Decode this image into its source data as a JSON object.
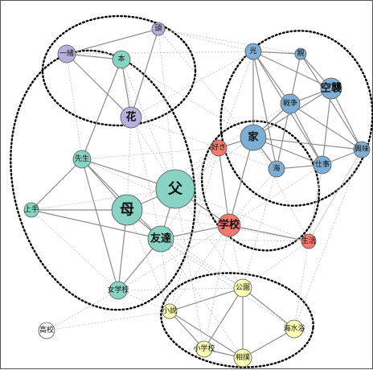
{
  "colors": {
    "teal": "#88d3c3",
    "blue": "#7eaed4",
    "purple": "#b6b0dd",
    "red": "#f2796b",
    "yellow": "#ffffb3",
    "white": "#ffffff",
    "strong_edge": "#8c8c8c",
    "weak_edge": "#c4c4c4"
  },
  "nodes": [
    {
      "id": "mother",
      "label": "母",
      "group": "teal"
    },
    {
      "id": "father",
      "label": "父",
      "group": "teal"
    },
    {
      "id": "friend",
      "label": "友達",
      "group": "teal"
    },
    {
      "id": "teacher",
      "label": "先生",
      "group": "teal"
    },
    {
      "id": "skilled",
      "label": "上手",
      "group": "teal"
    },
    {
      "id": "girls-school",
      "label": "女学校",
      "group": "teal"
    },
    {
      "id": "book",
      "label": "本",
      "group": "teal"
    },
    {
      "id": "flower",
      "label": "花",
      "group": "purple"
    },
    {
      "id": "together",
      "label": "一緒",
      "group": "purple"
    },
    {
      "id": "head",
      "label": "頭",
      "group": "purple"
    },
    {
      "id": "light",
      "label": "光",
      "group": "blue"
    },
    {
      "id": "relative",
      "label": "親",
      "group": "blue"
    },
    {
      "id": "air-raid",
      "label": "空襲",
      "group": "blue"
    },
    {
      "id": "war",
      "label": "戦争",
      "group": "blue"
    },
    {
      "id": "home",
      "label": "家",
      "group": "blue"
    },
    {
      "id": "sea",
      "label": "海",
      "group": "blue"
    },
    {
      "id": "work",
      "label": "仕事",
      "group": "blue"
    },
    {
      "id": "interest",
      "label": "興味",
      "group": "blue"
    },
    {
      "id": "like",
      "label": "好き",
      "group": "red"
    },
    {
      "id": "school",
      "label": "学校",
      "group": "red"
    },
    {
      "id": "life",
      "label": "生活",
      "group": "red"
    },
    {
      "id": "park",
      "label": "公園",
      "group": "yellow"
    },
    {
      "id": "novel",
      "label": "小説",
      "group": "yellow"
    },
    {
      "id": "sea-bathing",
      "label": "海水浴",
      "group": "yellow"
    },
    {
      "id": "elementary-school",
      "label": "小学校",
      "group": "yellow"
    },
    {
      "id": "sumo",
      "label": "相撲",
      "group": "yellow"
    },
    {
      "id": "high-school",
      "label": "高校",
      "group": "white"
    }
  ],
  "edges": [
    {
      "from": "mother",
      "to": "father",
      "type": "strong"
    },
    {
      "from": "mother",
      "to": "friend",
      "type": "strong"
    },
    {
      "from": "father",
      "to": "friend",
      "type": "strong"
    },
    {
      "from": "teacher",
      "to": "mother",
      "type": "strong"
    },
    {
      "from": "teacher",
      "to": "father",
      "type": "strong"
    },
    {
      "from": "teacher",
      "to": "friend",
      "type": "strong"
    },
    {
      "from": "skilled",
      "to": "mother",
      "type": "strong"
    },
    {
      "from": "skilled",
      "to": "teacher",
      "type": "strong"
    },
    {
      "from": "girls-school",
      "to": "mother",
      "type": "strong"
    },
    {
      "from": "girls-school",
      "to": "friend",
      "type": "strong"
    },
    {
      "from": "girls-school",
      "to": "teacher",
      "type": "strong"
    },
    {
      "from": "friend",
      "to": "skilled",
      "type": "strong"
    },
    {
      "from": "book",
      "to": "flower",
      "type": "strong"
    },
    {
      "from": "book",
      "to": "together",
      "type": "strong"
    },
    {
      "from": "together",
      "to": "flower",
      "type": "strong"
    },
    {
      "from": "together",
      "to": "head",
      "type": "strong"
    },
    {
      "from": "flower",
      "to": "head",
      "type": "strong"
    },
    {
      "from": "teacher",
      "to": "book",
      "type": "strong"
    },
    {
      "from": "light",
      "to": "relative",
      "type": "strong"
    },
    {
      "from": "light",
      "to": "war",
      "type": "strong"
    },
    {
      "from": "light",
      "to": "air-raid",
      "type": "strong"
    },
    {
      "from": "light",
      "to": "home",
      "type": "strong"
    },
    {
      "from": "light",
      "to": "sea",
      "type": "strong"
    },
    {
      "from": "light",
      "to": "work",
      "type": "strong"
    },
    {
      "from": "relative",
      "to": "air-raid",
      "type": "strong"
    },
    {
      "from": "relative",
      "to": "war",
      "type": "strong"
    },
    {
      "from": "relative",
      "to": "interest",
      "type": "strong"
    },
    {
      "from": "air-raid",
      "to": "war",
      "type": "strong"
    },
    {
      "from": "air-raid",
      "to": "home",
      "type": "strong"
    },
    {
      "from": "air-raid",
      "to": "interest",
      "type": "strong"
    },
    {
      "from": "air-raid",
      "to": "work",
      "type": "strong"
    },
    {
      "from": "war",
      "to": "home",
      "type": "strong"
    },
    {
      "from": "war",
      "to": "sea",
      "type": "strong"
    },
    {
      "from": "war",
      "to": "work",
      "type": "strong"
    },
    {
      "from": "war",
      "to": "interest",
      "type": "strong"
    },
    {
      "from": "home",
      "to": "sea",
      "type": "strong"
    },
    {
      "from": "home",
      "to": "work",
      "type": "strong"
    },
    {
      "from": "home",
      "to": "interest",
      "type": "strong"
    },
    {
      "from": "sea",
      "to": "work",
      "type": "strong"
    },
    {
      "from": "work",
      "to": "interest",
      "type": "strong"
    },
    {
      "from": "home",
      "to": "like",
      "type": "strong"
    },
    {
      "from": "like",
      "to": "school",
      "type": "strong"
    },
    {
      "from": "school",
      "to": "life",
      "type": "strong"
    },
    {
      "from": "home",
      "to": "school",
      "type": "strong"
    },
    {
      "from": "father",
      "to": "school",
      "type": "strong"
    },
    {
      "from": "friend",
      "to": "school",
      "type": "strong"
    },
    {
      "from": "park",
      "to": "novel",
      "type": "strong"
    },
    {
      "from": "park",
      "to": "sumo",
      "type": "strong"
    },
    {
      "from": "park",
      "to": "sea-bathing",
      "type": "strong"
    },
    {
      "from": "park",
      "to": "elementary-school",
      "type": "strong"
    },
    {
      "from": "novel",
      "to": "elementary-school",
      "type": "strong"
    },
    {
      "from": "novel",
      "to": "sumo",
      "type": "strong"
    },
    {
      "from": "elementary-school",
      "to": "sumo",
      "type": "strong"
    },
    {
      "from": "sumo",
      "to": "sea-bathing",
      "type": "strong"
    },
    {
      "from": "head",
      "to": "light",
      "type": "weak"
    },
    {
      "from": "head",
      "to": "sea",
      "type": "weak"
    },
    {
      "from": "head",
      "to": "father",
      "type": "weak"
    },
    {
      "from": "head",
      "to": "relative",
      "type": "weak"
    },
    {
      "from": "together",
      "to": "teacher",
      "type": "weak"
    },
    {
      "from": "together",
      "to": "light",
      "type": "weak"
    },
    {
      "from": "book",
      "to": "home",
      "type": "weak"
    },
    {
      "from": "book",
      "to": "father",
      "type": "weak"
    },
    {
      "from": "book",
      "to": "friend",
      "type": "weak"
    },
    {
      "from": "flower",
      "to": "like",
      "type": "weak"
    },
    {
      "from": "flower",
      "to": "father",
      "type": "weak"
    },
    {
      "from": "flower",
      "to": "mother",
      "type": "weak"
    },
    {
      "from": "flower",
      "to": "light",
      "type": "weak"
    },
    {
      "from": "teacher",
      "to": "like",
      "type": "weak"
    },
    {
      "from": "teacher",
      "to": "school",
      "type": "weak"
    },
    {
      "from": "skilled",
      "to": "father",
      "type": "weak"
    },
    {
      "from": "skilled",
      "to": "girls-school",
      "type": "weak"
    },
    {
      "from": "mother",
      "to": "life",
      "type": "weak"
    },
    {
      "from": "mother",
      "to": "novel",
      "type": "weak"
    },
    {
      "from": "mother",
      "to": "park",
      "type": "weak"
    },
    {
      "from": "mother",
      "to": "like",
      "type": "weak"
    },
    {
      "from": "father",
      "to": "like",
      "type": "weak"
    },
    {
      "from": "father",
      "to": "life",
      "type": "weak"
    },
    {
      "from": "father",
      "to": "park",
      "type": "weak"
    },
    {
      "from": "father",
      "to": "elementary-school",
      "type": "weak"
    },
    {
      "from": "father",
      "to": "home",
      "type": "weak"
    },
    {
      "from": "friend",
      "to": "life",
      "type": "weak"
    },
    {
      "from": "friend",
      "to": "park",
      "type": "weak"
    },
    {
      "from": "friend",
      "to": "sumo",
      "type": "weak"
    },
    {
      "from": "friend",
      "to": "novel",
      "type": "weak"
    },
    {
      "from": "friend",
      "to": "sea-bathing",
      "type": "weak"
    },
    {
      "from": "friend",
      "to": "like",
      "type": "weak"
    },
    {
      "from": "girls-school",
      "to": "novel",
      "type": "weak"
    },
    {
      "from": "girls-school",
      "to": "school",
      "type": "weak"
    },
    {
      "from": "girls-school",
      "to": "high-school",
      "type": "weak"
    },
    {
      "from": "girls-school",
      "to": "park",
      "type": "weak"
    },
    {
      "from": "like",
      "to": "war",
      "type": "weak"
    },
    {
      "from": "like",
      "to": "sea",
      "type": "weak"
    },
    {
      "from": "like",
      "to": "light",
      "type": "weak"
    },
    {
      "from": "like",
      "to": "novel",
      "type": "weak"
    },
    {
      "from": "school",
      "to": "park",
      "type": "weak"
    },
    {
      "from": "school",
      "to": "novel",
      "type": "weak"
    },
    {
      "from": "school",
      "to": "sea",
      "type": "weak"
    },
    {
      "from": "school",
      "to": "work",
      "type": "weak"
    },
    {
      "from": "life",
      "to": "work",
      "type": "weak"
    },
    {
      "from": "life",
      "to": "interest",
      "type": "weak"
    },
    {
      "from": "life",
      "to": "sea-bathing",
      "type": "weak"
    },
    {
      "from": "life",
      "to": "park",
      "type": "weak"
    },
    {
      "from": "sea",
      "to": "park",
      "type": "weak"
    },
    {
      "from": "work",
      "to": "life",
      "type": "weak"
    },
    {
      "from": "interest",
      "to": "sea-bathing",
      "type": "weak"
    },
    {
      "from": "interest",
      "to": "life",
      "type": "weak"
    },
    {
      "from": "home",
      "to": "life",
      "type": "weak"
    },
    {
      "from": "high-school",
      "to": "novel",
      "type": "weak"
    },
    {
      "from": "elementary-school",
      "to": "school",
      "type": "weak"
    }
  ],
  "clusters": [
    {
      "id": "cluster-top-left"
    },
    {
      "id": "cluster-left"
    },
    {
      "id": "cluster-top-right"
    },
    {
      "id": "cluster-middle"
    },
    {
      "id": "cluster-bottom"
    }
  ]
}
